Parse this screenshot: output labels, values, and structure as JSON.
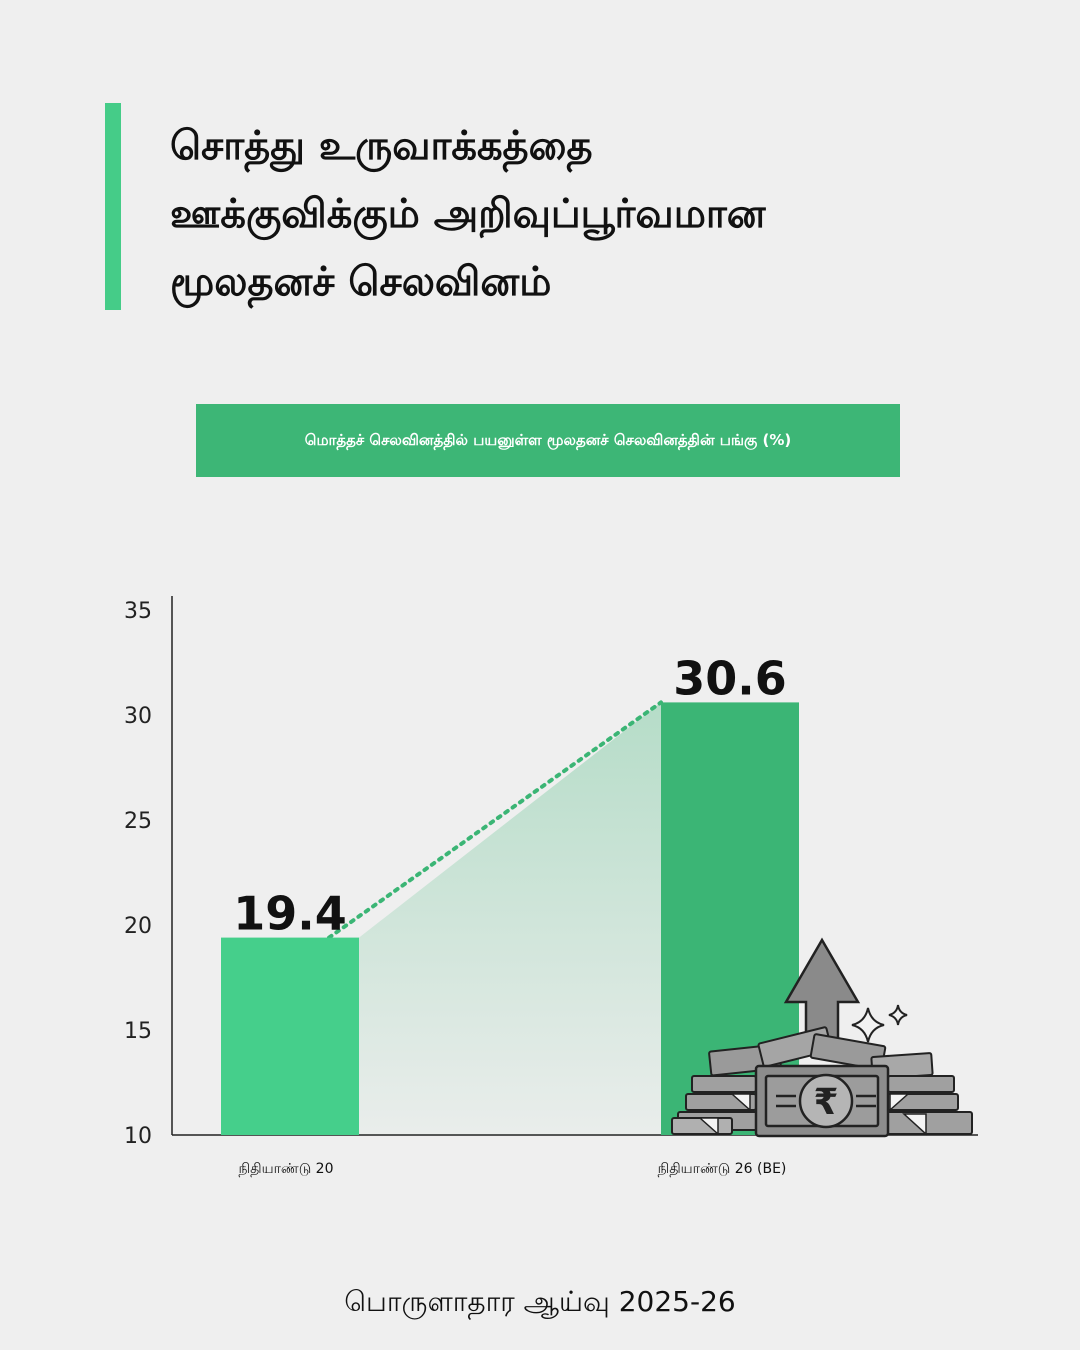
{
  "title_lines": [
    "சொத்து உருவாக்கத்தை",
    "ஊக்குவிக்கும் அறிவுப்பூர்வமான",
    "மூலதனச் செலவினம்"
  ],
  "subtitle": "மொத்தச் செலவினத்தில் பயனுள்ள மூலதனச் செலவினத்தின் பங்கு (%)",
  "source": "பொருளாதார ஆய்வு 2025-26",
  "colors": {
    "accent": "#45cc88",
    "bar_first": "#45cf8b",
    "bar_second": "#3bb575",
    "subtitle_bg": "#3db676",
    "connector": "#3bb575",
    "background": "#efefef"
  },
  "icons": [
    "money-stack-rupee-icon",
    "up-arrow-icon",
    "sparkle-icon"
  ],
  "chart_data": {
    "type": "bar",
    "categories": [
      "நிதியாண்டு 20",
      "நிதியாண்டு 26 (BE)"
    ],
    "values": [
      19.4,
      30.6
    ],
    "value_labels": [
      "19.4",
      "30.6"
    ],
    "ylim": [
      10,
      35
    ],
    "yticks": [
      10,
      15,
      20,
      25,
      30,
      35
    ],
    "title": "",
    "xlabel": "",
    "ylabel": "",
    "grid": false,
    "legend": "none"
  }
}
